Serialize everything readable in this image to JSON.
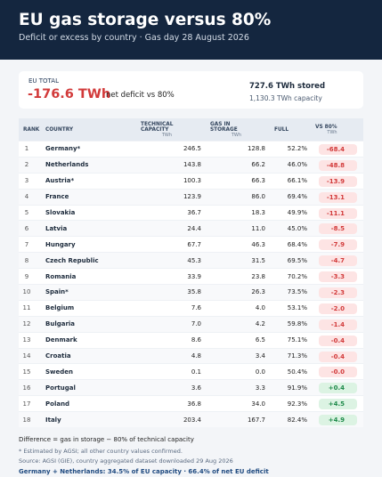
{
  "header": {
    "title": "EU gas storage versus 80%",
    "subtitle": "Deficit or excess by country · Gas day 28 August 2026"
  },
  "summary": {
    "label": "EU TOTAL",
    "value": "-176.6 TWh",
    "value_note": "net deficit vs 80%",
    "stored": "727.6 TWh stored",
    "capacity": "1,130.3 TWh capacity"
  },
  "table": {
    "columns": [
      {
        "label": "RANK"
      },
      {
        "label": "COUNTRY"
      },
      {
        "label": "TECHNICAL CAPACITY",
        "unit": "TWh"
      },
      {
        "label": "GAS IN STORAGE",
        "unit": "TWh"
      },
      {
        "label": "FULL"
      },
      {
        "label": "VS 80%",
        "unit": "TWh"
      }
    ],
    "rows": [
      [
        "1",
        "Germany*",
        "246.5",
        "128.8",
        "52.2%",
        "-68.4"
      ],
      [
        "2",
        "Netherlands",
        "143.8",
        "66.2",
        "46.0%",
        "-48.8"
      ],
      [
        "3",
        "Austria*",
        "100.3",
        "66.3",
        "66.1%",
        "-13.9"
      ],
      [
        "4",
        "France",
        "123.9",
        "86.0",
        "69.4%",
        "-13.1"
      ],
      [
        "5",
        "Slovakia",
        "36.7",
        "18.3",
        "49.9%",
        "-11.1"
      ],
      [
        "6",
        "Latvia",
        "24.4",
        "11.0",
        "45.0%",
        "-8.5"
      ],
      [
        "7",
        "Hungary",
        "67.7",
        "46.3",
        "68.4%",
        "-7.9"
      ],
      [
        "8",
        "Czech Republic",
        "45.3",
        "31.5",
        "69.5%",
        "-4.7"
      ],
      [
        "9",
        "Romania",
        "33.9",
        "23.8",
        "70.2%",
        "-3.3"
      ],
      [
        "10",
        "Spain*",
        "35.8",
        "26.3",
        "73.5%",
        "-2.3"
      ],
      [
        "11",
        "Belgium",
        "7.6",
        "4.0",
        "53.1%",
        "-2.0"
      ],
      [
        "12",
        "Bulgaria",
        "7.0",
        "4.2",
        "59.8%",
        "-1.4"
      ],
      [
        "13",
        "Denmark",
        "8.6",
        "6.5",
        "75.1%",
        "-0.4"
      ],
      [
        "14",
        "Croatia",
        "4.8",
        "3.4",
        "71.3%",
        "-0.4"
      ],
      [
        "15",
        "Sweden",
        "0.1",
        "0.0",
        "50.4%",
        "-0.0"
      ],
      [
        "16",
        "Portugal",
        "3.6",
        "3.3",
        "91.9%",
        "+0.4"
      ],
      [
        "17",
        "Poland",
        "36.8",
        "34.0",
        "92.3%",
        "+4.5"
      ],
      [
        "18",
        "Italy",
        "203.4",
        "167.7",
        "82.4%",
        "+4.9"
      ]
    ]
  },
  "footer": {
    "definition": "Difference = gas in storage − 80% of technical capacity",
    "note": "* Estimated by AGSI; all other country values confirmed.",
    "source": "Source: AGSI (GIE), country aggregated dataset downloaded 29 Aug 2026",
    "highlight": "Germany + Netherlands: 34.5% of EU capacity · 66.4% of net EU deficit"
  }
}
